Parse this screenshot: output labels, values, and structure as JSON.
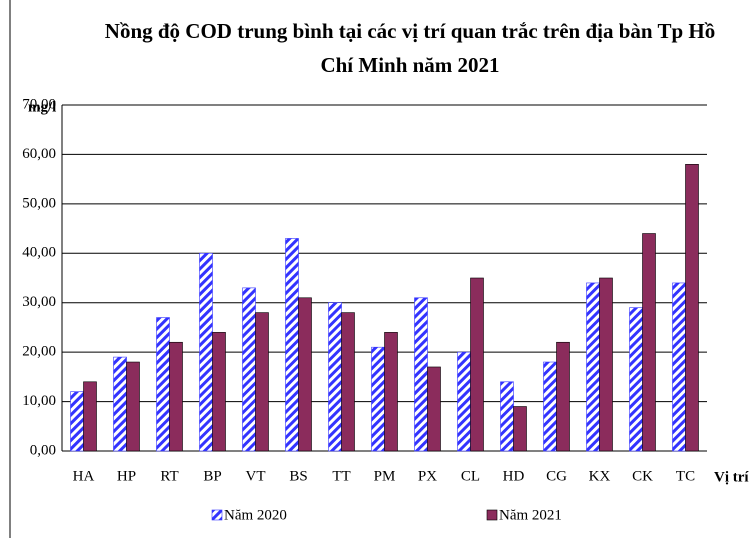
{
  "chart_data": {
    "type": "bar",
    "title": "Nồng độ COD trung bình tại các vị trí quan trắc trên địa bàn Tp Hồ Chí Minh năm 2021",
    "y_label": "mg/l",
    "x_label": "Vị trí",
    "categories": [
      "HA",
      "HP",
      "RT",
      "BP",
      "VT",
      "BS",
      "TT",
      "PM",
      "PX",
      "CL",
      "HD",
      "CG",
      "KX",
      "CK",
      "TC"
    ],
    "series": [
      {
        "name": "Năm 2020",
        "color": "#3333ff",
        "values": [
          12,
          19,
          27,
          40,
          33,
          43,
          30,
          21,
          31,
          20,
          14,
          18,
          34,
          29,
          34
        ]
      },
      {
        "name": "Năm 2021",
        "color": "#8b2c5c",
        "values": [
          14,
          18,
          22,
          24,
          28,
          31,
          28,
          24,
          17,
          35,
          9,
          22,
          35,
          44,
          58
        ]
      }
    ],
    "ylim": [
      0,
      70
    ],
    "yticks": [
      {
        "value": 0,
        "label": "0,00"
      },
      {
        "value": 10,
        "label": "10,00"
      },
      {
        "value": 20,
        "label": "20,00"
      },
      {
        "value": 30,
        "label": "30,00"
      },
      {
        "value": 40,
        "label": "40,00"
      },
      {
        "value": 50,
        "label": "50,00"
      },
      {
        "value": 60,
        "label": "60,00"
      },
      {
        "value": 70,
        "label": "70,00"
      }
    ],
    "grid": true
  }
}
